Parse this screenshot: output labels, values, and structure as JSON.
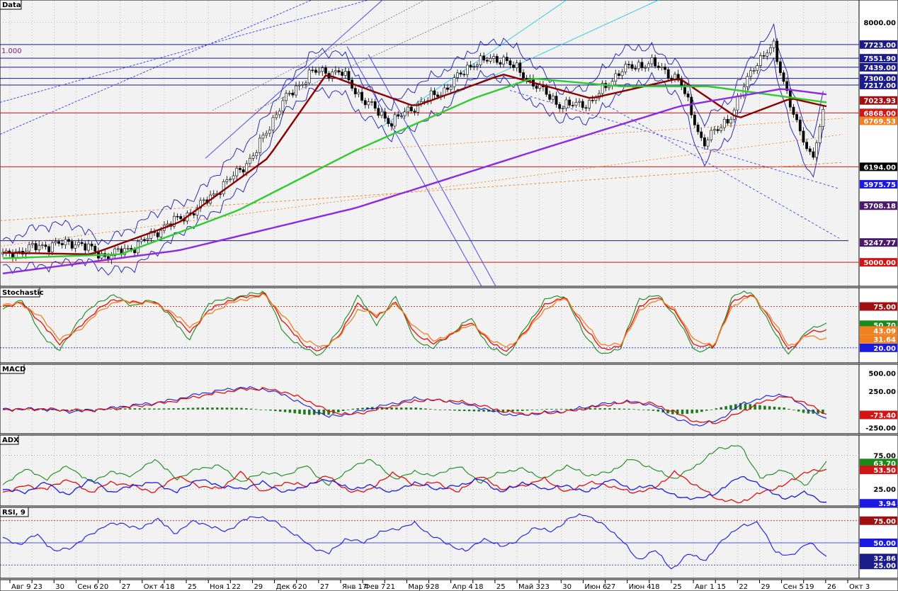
{
  "colors": {
    "background": "#f2f2f2",
    "frame": "#000000",
    "grid": "#9a9a9a",
    "candle_up": "#ffffff",
    "candle_down": "#000000",
    "bollinger": "#1a1aa8",
    "ma_short": "#8b0000",
    "ma_mid": "#2ecc2e",
    "ma_long": "#8b2be2",
    "hline_red": "#d11515",
    "hline_navy": "#1b1b8a",
    "channel_blue": "#3a3af0",
    "channel_cyan": "#29c4e6",
    "fib_orange": "#f08020",
    "stoch_green": "#1a8a1a",
    "stoch_red": "#e01010",
    "stoch_orange": "#f08020",
    "macd_line": "#1a1ae0",
    "macd_signal": "#e01010",
    "macd_hist": "#1a7a1a",
    "adx_green": "#1a8a1a",
    "adx_red": "#e01010",
    "adx_blue": "#1a1ae0",
    "rsi_line": "#1a1ae0"
  },
  "panels": {
    "price": {
      "name": "Data",
      "fib_label": "1.000",
      "price_labels": [
        {
          "text": "8000.00",
          "value": 8000,
          "kind": "axis"
        },
        {
          "text": "7723.00",
          "value": 7723,
          "kind": "navy"
        },
        {
          "text": "7551.90",
          "value": 7551.9,
          "kind": "navy"
        },
        {
          "text": "7439.00",
          "value": 7439,
          "kind": "navy"
        },
        {
          "text": "7300.00",
          "value": 7300,
          "kind": "navy"
        },
        {
          "text": "7217.00",
          "value": 7217,
          "kind": "navy"
        },
        {
          "text": "7023.93",
          "value": 7023.93,
          "kind": "darkred"
        },
        {
          "text": "6868.00",
          "value": 6868,
          "kind": "red"
        },
        {
          "text": "6769.53",
          "value": 6769.53,
          "kind": "orange"
        },
        {
          "text": "6194.00",
          "value": 6194,
          "kind": "black"
        },
        {
          "text": "5975.75",
          "value": 5975.75,
          "kind": "blue"
        },
        {
          "text": "5708.18",
          "value": 5708.18,
          "kind": "purple"
        },
        {
          "text": "5247.77",
          "value": 5247.77,
          "kind": "purple"
        },
        {
          "text": "5000.00",
          "value": 5000,
          "kind": "red"
        }
      ]
    },
    "stochastic": {
      "name": "Stochastic",
      "labels": [
        {
          "text": "75.00",
          "value": 75,
          "kind": "darkred"
        },
        {
          "text": "50.70",
          "value": 50.7,
          "kind": "green"
        },
        {
          "text": "43.09",
          "value": 43.09,
          "kind": "orange"
        },
        {
          "text": "31.64",
          "value": 31.64,
          "kind": "orange"
        },
        {
          "text": "20.00",
          "value": 20,
          "kind": "blue"
        }
      ]
    },
    "macd": {
      "name": "MACD",
      "labels": [
        {
          "text": "500.00",
          "value": 500,
          "kind": "axis"
        },
        {
          "text": "250.00",
          "value": 250,
          "kind": "axis"
        },
        {
          "text": "-73.40",
          "value": -73.4,
          "kind": "red"
        },
        {
          "text": "-250.00",
          "value": -250,
          "kind": "axis"
        }
      ]
    },
    "adx": {
      "name": "ADX",
      "labels": [
        {
          "text": "75.00",
          "value": 75,
          "kind": "axis"
        },
        {
          "text": "63.70",
          "value": 63.7,
          "kind": "green"
        },
        {
          "text": "53.50",
          "value": 53.5,
          "kind": "red"
        },
        {
          "text": "25.00",
          "value": 25,
          "kind": "axis"
        },
        {
          "text": "3.94",
          "value": 3.94,
          "kind": "blue"
        }
      ]
    },
    "rsi": {
      "name": "RSI, 9",
      "labels": [
        {
          "text": "75.00",
          "value": 75,
          "kind": "darkred"
        },
        {
          "text": "50.00",
          "value": 50,
          "kind": "blue"
        },
        {
          "text": "32.86",
          "value": 32.86,
          "kind": "navy"
        },
        {
          "text": "25.00",
          "value": 25,
          "kind": "navy"
        }
      ]
    }
  },
  "x_axis": {
    "ticks": [
      "Авг 9",
      "23",
      "30",
      "Сен 6",
      "20",
      "27",
      "Окт 4",
      "18",
      "25",
      "Ноя 1",
      "22",
      "29",
      "Дек 6",
      "20",
      "27",
      "Янв 17",
      "Фев 7",
      "21",
      "Мар 9",
      "28",
      "Апр 4",
      "18",
      "25",
      "Май 3",
      "23",
      "30",
      "Июн 6",
      "27",
      "Июн 4",
      "18",
      "25",
      "Авг 1",
      "15",
      "22",
      "29",
      "Сен 5",
      "19",
      "26",
      "Окт 3"
    ]
  },
  "chart_data": [
    {
      "type": "candlestick",
      "panel": "Data",
      "ylim": [
        4700,
        8280
      ],
      "x_count": 250,
      "close_points": [
        [
          0,
          5080
        ],
        [
          12,
          5200
        ],
        [
          25,
          5250
        ],
        [
          35,
          5070
        ],
        [
          45,
          5200
        ],
        [
          55,
          5450
        ],
        [
          65,
          5640
        ],
        [
          75,
          5960
        ],
        [
          85,
          6320
        ],
        [
          95,
          7000
        ],
        [
          105,
          7380
        ],
        [
          115,
          7380
        ],
        [
          122,
          7050
        ],
        [
          132,
          6750
        ],
        [
          140,
          6950
        ],
        [
          150,
          7150
        ],
        [
          160,
          7500
        ],
        [
          170,
          7550
        ],
        [
          180,
          7250
        ],
        [
          190,
          6950
        ],
        [
          200,
          7000
        ],
        [
          210,
          7400
        ],
        [
          220,
          7500
        ],
        [
          230,
          7280
        ],
        [
          238,
          6480
        ],
        [
          248,
          6850
        ],
        [
          255,
          7450
        ],
        [
          262,
          7700
        ],
        [
          270,
          6700
        ],
        [
          275,
          6300
        ],
        [
          280,
          7000
        ]
      ],
      "moving_averages": [
        {
          "points": [
            [
              0,
              5120
            ],
            [
              30,
              5100
            ],
            [
              60,
              5500
            ],
            [
              90,
              6300
            ],
            [
              110,
              7350
            ],
            [
              140,
              6950
            ],
            [
              170,
              7350
            ],
            [
              200,
              7050
            ],
            [
              230,
              7300
            ],
            [
              250,
              6800
            ],
            [
              268,
              7050
            ],
            [
              280,
              6950
            ]
          ]
        },
        {
          "points": [
            [
              0,
              5050
            ],
            [
              40,
              5100
            ],
            [
              80,
              5650
            ],
            [
              120,
              6400
            ],
            [
              160,
              7050
            ],
            [
              180,
              7300
            ],
            [
              210,
              7200
            ],
            [
              240,
              7200
            ],
            [
              280,
              7000
            ]
          ]
        },
        {
          "points": [
            [
              0,
              4860
            ],
            [
              60,
              5150
            ],
            [
              120,
              5680
            ],
            [
              180,
              6380
            ],
            [
              230,
              6950
            ],
            [
              265,
              7170
            ],
            [
              280,
              7100
            ]
          ]
        }
      ],
      "horizontal_levels": [
        8000,
        7723,
        7551.9,
        7439,
        7300,
        7217,
        6868,
        6194,
        5000
      ]
    },
    {
      "type": "line",
      "panel": "Stochastic",
      "ylim": [
        0,
        100
      ],
      "series": [
        {
          "values": [
            70,
            85,
            40,
            15,
            55,
            80,
            90,
            75,
            85,
            60,
            30,
            80,
            85,
            90,
            95,
            40,
            20,
            10,
            45,
            90,
            50,
            90,
            30,
            20,
            40,
            60,
            20,
            10,
            50,
            85,
            90,
            40,
            10,
            20,
            85,
            90,
            60,
            15,
            20,
            90,
            95,
            50,
            10,
            45,
            50.7
          ]
        },
        {
          "values": [
            75,
            80,
            55,
            25,
            45,
            70,
            85,
            80,
            82,
            65,
            40,
            70,
            82,
            88,
            92,
            55,
            25,
            15,
            38,
            80,
            60,
            82,
            40,
            25,
            38,
            55,
            28,
            15,
            45,
            78,
            88,
            50,
            18,
            22,
            75,
            88,
            65,
            22,
            22,
            82,
            92,
            58,
            16,
            40,
            43.09
          ]
        },
        {
          "values": [
            78,
            78,
            62,
            32,
            42,
            65,
            82,
            80,
            80,
            68,
            48,
            65,
            78,
            85,
            90,
            62,
            32,
            20,
            35,
            72,
            64,
            78,
            48,
            30,
            38,
            52,
            32,
            20,
            42,
            72,
            86,
            56,
            24,
            24,
            68,
            86,
            68,
            28,
            24,
            76,
            90,
            62,
            22,
            36,
            31.64
          ]
        }
      ]
    },
    {
      "type": "line",
      "panel": "MACD",
      "ylim": [
        -330,
        620
      ],
      "series": [
        {
          "values": [
            0,
            10,
            5,
            -30,
            -10,
            20,
            60,
            90,
            140,
            210,
            260,
            300,
            280,
            200,
            50,
            -100,
            -60,
            20,
            80,
            150,
            130,
            90,
            30,
            -60,
            -80,
            -40,
            -20,
            40,
            90,
            110,
            60,
            -120,
            -220,
            -150,
            60,
            160,
            210,
            40,
            -140
          ]
        },
        {
          "values": [
            0,
            5,
            8,
            -10,
            -12,
            10,
            40,
            75,
            120,
            180,
            230,
            275,
            285,
            240,
            130,
            -20,
            -70,
            -20,
            50,
            120,
            130,
            110,
            60,
            -20,
            -60,
            -50,
            -30,
            20,
            70,
            100,
            80,
            -40,
            -170,
            -180,
            -40,
            100,
            180,
            100,
            -73.4
          ]
        }
      ]
    },
    {
      "type": "line",
      "panel": "ADX",
      "ylim": [
        0,
        105
      ],
      "series": [
        {
          "values": [
            30,
            55,
            40,
            60,
            35,
            50,
            45,
            70,
            40,
            55,
            60,
            35,
            50,
            45,
            60,
            30,
            55,
            70,
            40,
            50,
            45,
            60,
            35,
            50,
            55,
            40,
            60,
            45,
            50,
            70,
            55,
            40,
            60,
            85,
            90,
            40,
            55,
            30,
            63.7
          ]
        },
        {
          "values": [
            20,
            30,
            25,
            40,
            20,
            35,
            30,
            20,
            45,
            30,
            25,
            50,
            20,
            35,
            30,
            45,
            20,
            25,
            50,
            30,
            35,
            20,
            45,
            25,
            30,
            40,
            20,
            35,
            30,
            20,
            25,
            50,
            30,
            10,
            5,
            20,
            30,
            50,
            53.5
          ]
        },
        {
          "values": [
            25,
            20,
            35,
            15,
            40,
            20,
            30,
            35,
            20,
            40,
            30,
            25,
            35,
            20,
            30,
            40,
            25,
            30,
            20,
            35,
            25,
            30,
            40,
            20,
            35,
            25,
            30,
            20,
            40,
            25,
            30,
            15,
            10,
            20,
            45,
            30,
            10,
            20,
            3.94
          ]
        }
      ]
    },
    {
      "type": "line",
      "panel": "RSI, 9",
      "ylim": [
        10,
        90
      ],
      "series": [
        {
          "values": [
            55,
            48,
            60,
            40,
            45,
            58,
            70,
            72,
            65,
            78,
            60,
            74,
            70,
            62,
            76,
            80,
            72,
            60,
            45,
            38,
            55,
            50,
            62,
            66,
            72,
            58,
            48,
            40,
            55,
            46,
            52,
            68,
            62,
            78,
            82,
            70,
            55,
            30,
            42,
            20,
            38,
            30,
            55,
            68,
            74,
            40,
            35,
            52,
            32.86
          ]
        }
      ]
    }
  ]
}
